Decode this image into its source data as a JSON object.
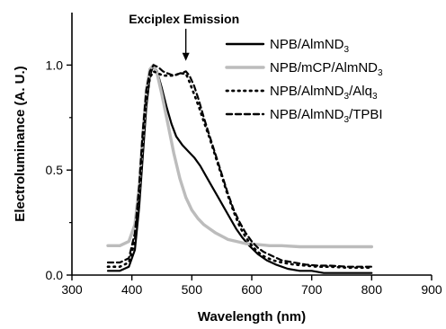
{
  "chart_data": {
    "type": "line",
    "xlabel": "Wavelength (nm)",
    "ylabel": "Electroluminance (A. U.)",
    "xlim": [
      300,
      900
    ],
    "ylim": [
      0.0,
      1.25
    ],
    "x_ticks": [
      "300",
      "400",
      "500",
      "600",
      "700",
      "800",
      "900"
    ],
    "y_ticks": [
      "0.0",
      "0.5",
      "1.0"
    ],
    "grid": false,
    "legend_placement": "top-right",
    "annotation": {
      "text": "Exciplex Emission",
      "x": 490,
      "y": 1.02
    },
    "series": [
      {
        "name_main": "NPB/AlmND",
        "name_sub": "3",
        "name_tail": "",
        "color": "#000000",
        "style": "solid",
        "x": [
          360,
          380,
          395,
          405,
          412,
          418,
          424,
          430,
          436,
          442,
          450,
          458,
          466,
          474,
          484,
          494,
          504,
          514,
          524,
          534,
          544,
          554,
          564,
          574,
          584,
          596,
          610,
          625,
          640,
          660,
          680,
          700,
          720,
          740,
          760,
          780,
          800
        ],
        "y": [
          0.02,
          0.02,
          0.04,
          0.12,
          0.32,
          0.56,
          0.8,
          0.95,
          1.0,
          0.97,
          0.89,
          0.8,
          0.72,
          0.66,
          0.62,
          0.59,
          0.56,
          0.52,
          0.47,
          0.42,
          0.37,
          0.32,
          0.27,
          0.22,
          0.18,
          0.14,
          0.1,
          0.07,
          0.05,
          0.03,
          0.02,
          0.02,
          0.01,
          0.01,
          0.01,
          0.01,
          0.01
        ]
      },
      {
        "name_main": "NPB/mCP/AlmND",
        "name_sub": "3",
        "name_tail": "",
        "color": "#bcbcbc",
        "style": "solid",
        "x": [
          360,
          380,
          395,
          405,
          412,
          418,
          424,
          430,
          436,
          442,
          450,
          460,
          470,
          480,
          490,
          500,
          510,
          520,
          530,
          540,
          550,
          560,
          575,
          590,
          610,
          630,
          650,
          680,
          700,
          740,
          760,
          780,
          800
        ],
        "y": [
          0.14,
          0.14,
          0.16,
          0.24,
          0.42,
          0.66,
          0.88,
          0.98,
          1.0,
          0.96,
          0.86,
          0.72,
          0.58,
          0.46,
          0.37,
          0.31,
          0.27,
          0.24,
          0.22,
          0.2,
          0.185,
          0.17,
          0.16,
          0.15,
          0.145,
          0.14,
          0.14,
          0.135,
          0.135,
          0.135,
          0.135,
          0.135,
          0.135
        ]
      },
      {
        "name_main": "NPB/AlmND",
        "name_sub": "3",
        "name_tail": "/Alq",
        "name_sub2": "3",
        "color": "#000000",
        "style": "dotted",
        "x": [
          360,
          380,
          395,
          405,
          412,
          418,
          424,
          430,
          436,
          444,
          452,
          460,
          470,
          480,
          490,
          496,
          504,
          512,
          520,
          530,
          540,
          550,
          560,
          570,
          580,
          590,
          600,
          610,
          620,
          635,
          650,
          670,
          690,
          710,
          730,
          760,
          780,
          800
        ],
        "y": [
          0.04,
          0.04,
          0.06,
          0.16,
          0.36,
          0.6,
          0.82,
          0.94,
          0.97,
          0.96,
          0.95,
          0.95,
          0.95,
          0.96,
          0.96,
          0.92,
          0.86,
          0.8,
          0.73,
          0.65,
          0.56,
          0.47,
          0.38,
          0.3,
          0.23,
          0.18,
          0.14,
          0.11,
          0.09,
          0.07,
          0.06,
          0.05,
          0.045,
          0.04,
          0.04,
          0.035,
          0.035,
          0.035
        ]
      },
      {
        "name_main": "NPB/AlmND",
        "name_sub": "3",
        "name_tail": "/TPBI",
        "color": "#000000",
        "style": "dashed",
        "x": [
          360,
          380,
          395,
          405,
          412,
          418,
          424,
          430,
          436,
          444,
          452,
          460,
          470,
          480,
          490,
          496,
          504,
          512,
          520,
          530,
          540,
          550,
          560,
          570,
          580,
          590,
          600,
          610,
          620,
          635,
          650,
          670,
          690,
          710,
          730,
          760,
          780,
          800
        ],
        "y": [
          0.06,
          0.06,
          0.08,
          0.2,
          0.42,
          0.68,
          0.88,
          0.97,
          1.0,
          0.99,
          0.97,
          0.96,
          0.95,
          0.96,
          0.97,
          0.95,
          0.9,
          0.83,
          0.75,
          0.66,
          0.57,
          0.48,
          0.39,
          0.31,
          0.25,
          0.2,
          0.16,
          0.13,
          0.11,
          0.09,
          0.07,
          0.06,
          0.05,
          0.045,
          0.045,
          0.04,
          0.04,
          0.04
        ]
      }
    ]
  }
}
